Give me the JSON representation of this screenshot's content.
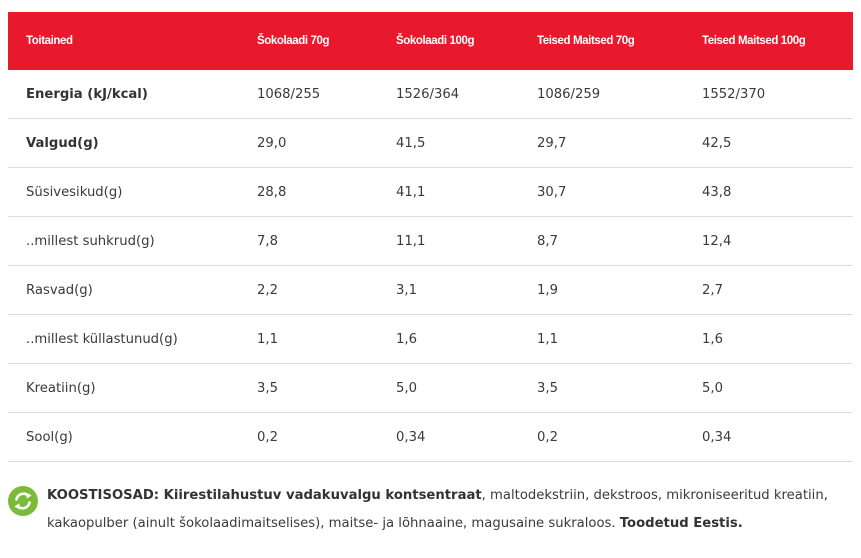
{
  "table": {
    "headers": [
      "Toitained",
      "Šokolaadi 70g",
      "Šokolaadi 100g",
      "Teised Maitsed 70g",
      "Teised Maitsed 100g"
    ],
    "header_color": "#e8192c",
    "rows": [
      {
        "label": "Energia (kJ/kcal)",
        "bold": true,
        "values": [
          "1068/255",
          "1526/364",
          "1086/259",
          "1552/370"
        ]
      },
      {
        "label": "Valgud(g)",
        "bold": true,
        "values": [
          "29,0",
          "41,5",
          "29,7",
          "42,5"
        ]
      },
      {
        "label": "Süsivesikud(g)",
        "bold": false,
        "values": [
          "28,8",
          "41,1",
          "30,7",
          "43,8"
        ]
      },
      {
        "label": "..millest suhkrud(g)",
        "bold": false,
        "values": [
          "7,8",
          "11,1",
          "8,7",
          "12,4"
        ]
      },
      {
        "label": "Rasvad(g)",
        "bold": false,
        "values": [
          "2,2",
          "3,1",
          "1,9",
          "2,7"
        ]
      },
      {
        "label": "..millest küllastunud(g)",
        "bold": false,
        "values": [
          "1,1",
          "1,6",
          "1,1",
          "1,6"
        ]
      },
      {
        "label": "Kreatiin(g)",
        "bold": false,
        "values": [
          "3,5",
          "5,0",
          "3,5",
          "5,0"
        ]
      },
      {
        "label": "Sool(g)",
        "bold": false,
        "values": [
          "0,2",
          "0,34",
          "0,2",
          "0,34"
        ]
      }
    ]
  },
  "ingredients": {
    "icon": "recycle-icon",
    "icon_color": "#7cbb3a",
    "heading": "KOOSTISOSAD: Kiirestilahustuv vadakuvalgu kontsentraat",
    "body": ", maltodekstriin, dekstroos, mikroniseeritud kreatiin, kakaopulber (ainult šokolaadimaitselises), maitse- ja lõhnaaine, magusaine sukraloos. ",
    "footer": "Toodetud Eestis."
  }
}
